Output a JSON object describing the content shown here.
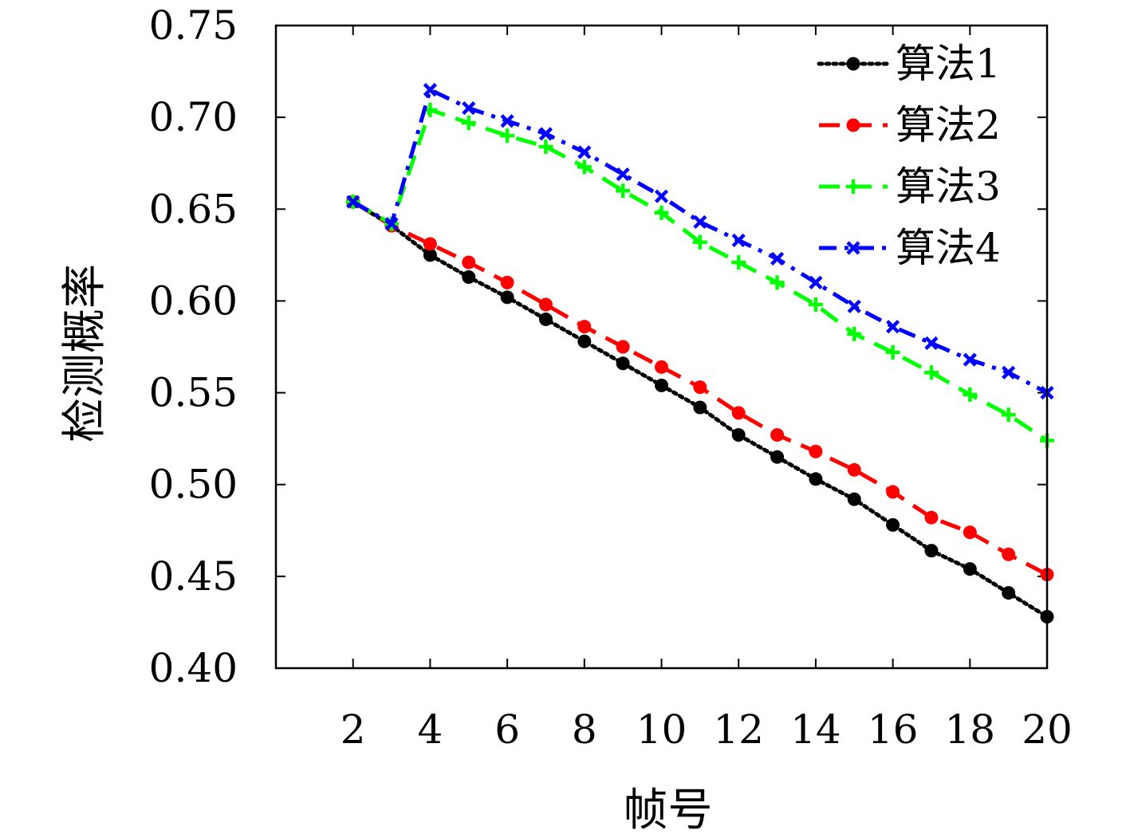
{
  "chart_data": {
    "type": "line",
    "title": "",
    "xlabel": "帧号",
    "ylabel": "检测概率",
    "xlim": [
      0,
      20
    ],
    "ylim": [
      0.4,
      0.75
    ],
    "x_ticks": [
      "2",
      "4",
      "6",
      "8",
      "10",
      "12",
      "14",
      "16",
      "18",
      "20"
    ],
    "y_ticks": [
      "0.40",
      "0.45",
      "0.50",
      "0.55",
      "0.60",
      "0.65",
      "0.70",
      "0.75"
    ],
    "grid": false,
    "legend_position": "top-right",
    "x": [
      2,
      3,
      4,
      5,
      6,
      7,
      8,
      9,
      10,
      11,
      12,
      13,
      14,
      15,
      16,
      17,
      18,
      19,
      20
    ],
    "series": [
      {
        "name": "算法1",
        "color": "#000000",
        "line_style": "dotted",
        "marker": "circle",
        "values": [
          0.654,
          0.641,
          0.625,
          0.613,
          0.602,
          0.59,
          0.578,
          0.566,
          0.554,
          0.542,
          0.527,
          0.515,
          0.503,
          0.492,
          0.478,
          0.464,
          0.454,
          0.441,
          0.428
        ]
      },
      {
        "name": "算法2",
        "color": "#ff0000",
        "line_style": "dashed",
        "marker": "circle",
        "values": [
          0.654,
          0.641,
          0.631,
          0.621,
          0.61,
          0.598,
          0.586,
          0.575,
          0.564,
          0.553,
          0.539,
          0.527,
          0.518,
          0.508,
          0.496,
          0.482,
          0.474,
          0.462,
          0.451
        ]
      },
      {
        "name": "算法3",
        "color": "#00ff00",
        "line_style": "dashed",
        "marker": "plus",
        "values": [
          0.654,
          0.642,
          0.704,
          0.697,
          0.69,
          0.684,
          0.673,
          0.66,
          0.648,
          0.632,
          0.621,
          0.61,
          0.598,
          0.582,
          0.572,
          0.561,
          0.549,
          0.538,
          0.524
        ]
      },
      {
        "name": "算法4",
        "color": "#0000ff",
        "line_style": "dashdot",
        "marker": "cross",
        "values": [
          0.654,
          0.642,
          0.715,
          0.705,
          0.698,
          0.691,
          0.681,
          0.669,
          0.657,
          0.643,
          0.633,
          0.623,
          0.61,
          0.597,
          0.586,
          0.577,
          0.568,
          0.561,
          0.55
        ]
      }
    ]
  }
}
